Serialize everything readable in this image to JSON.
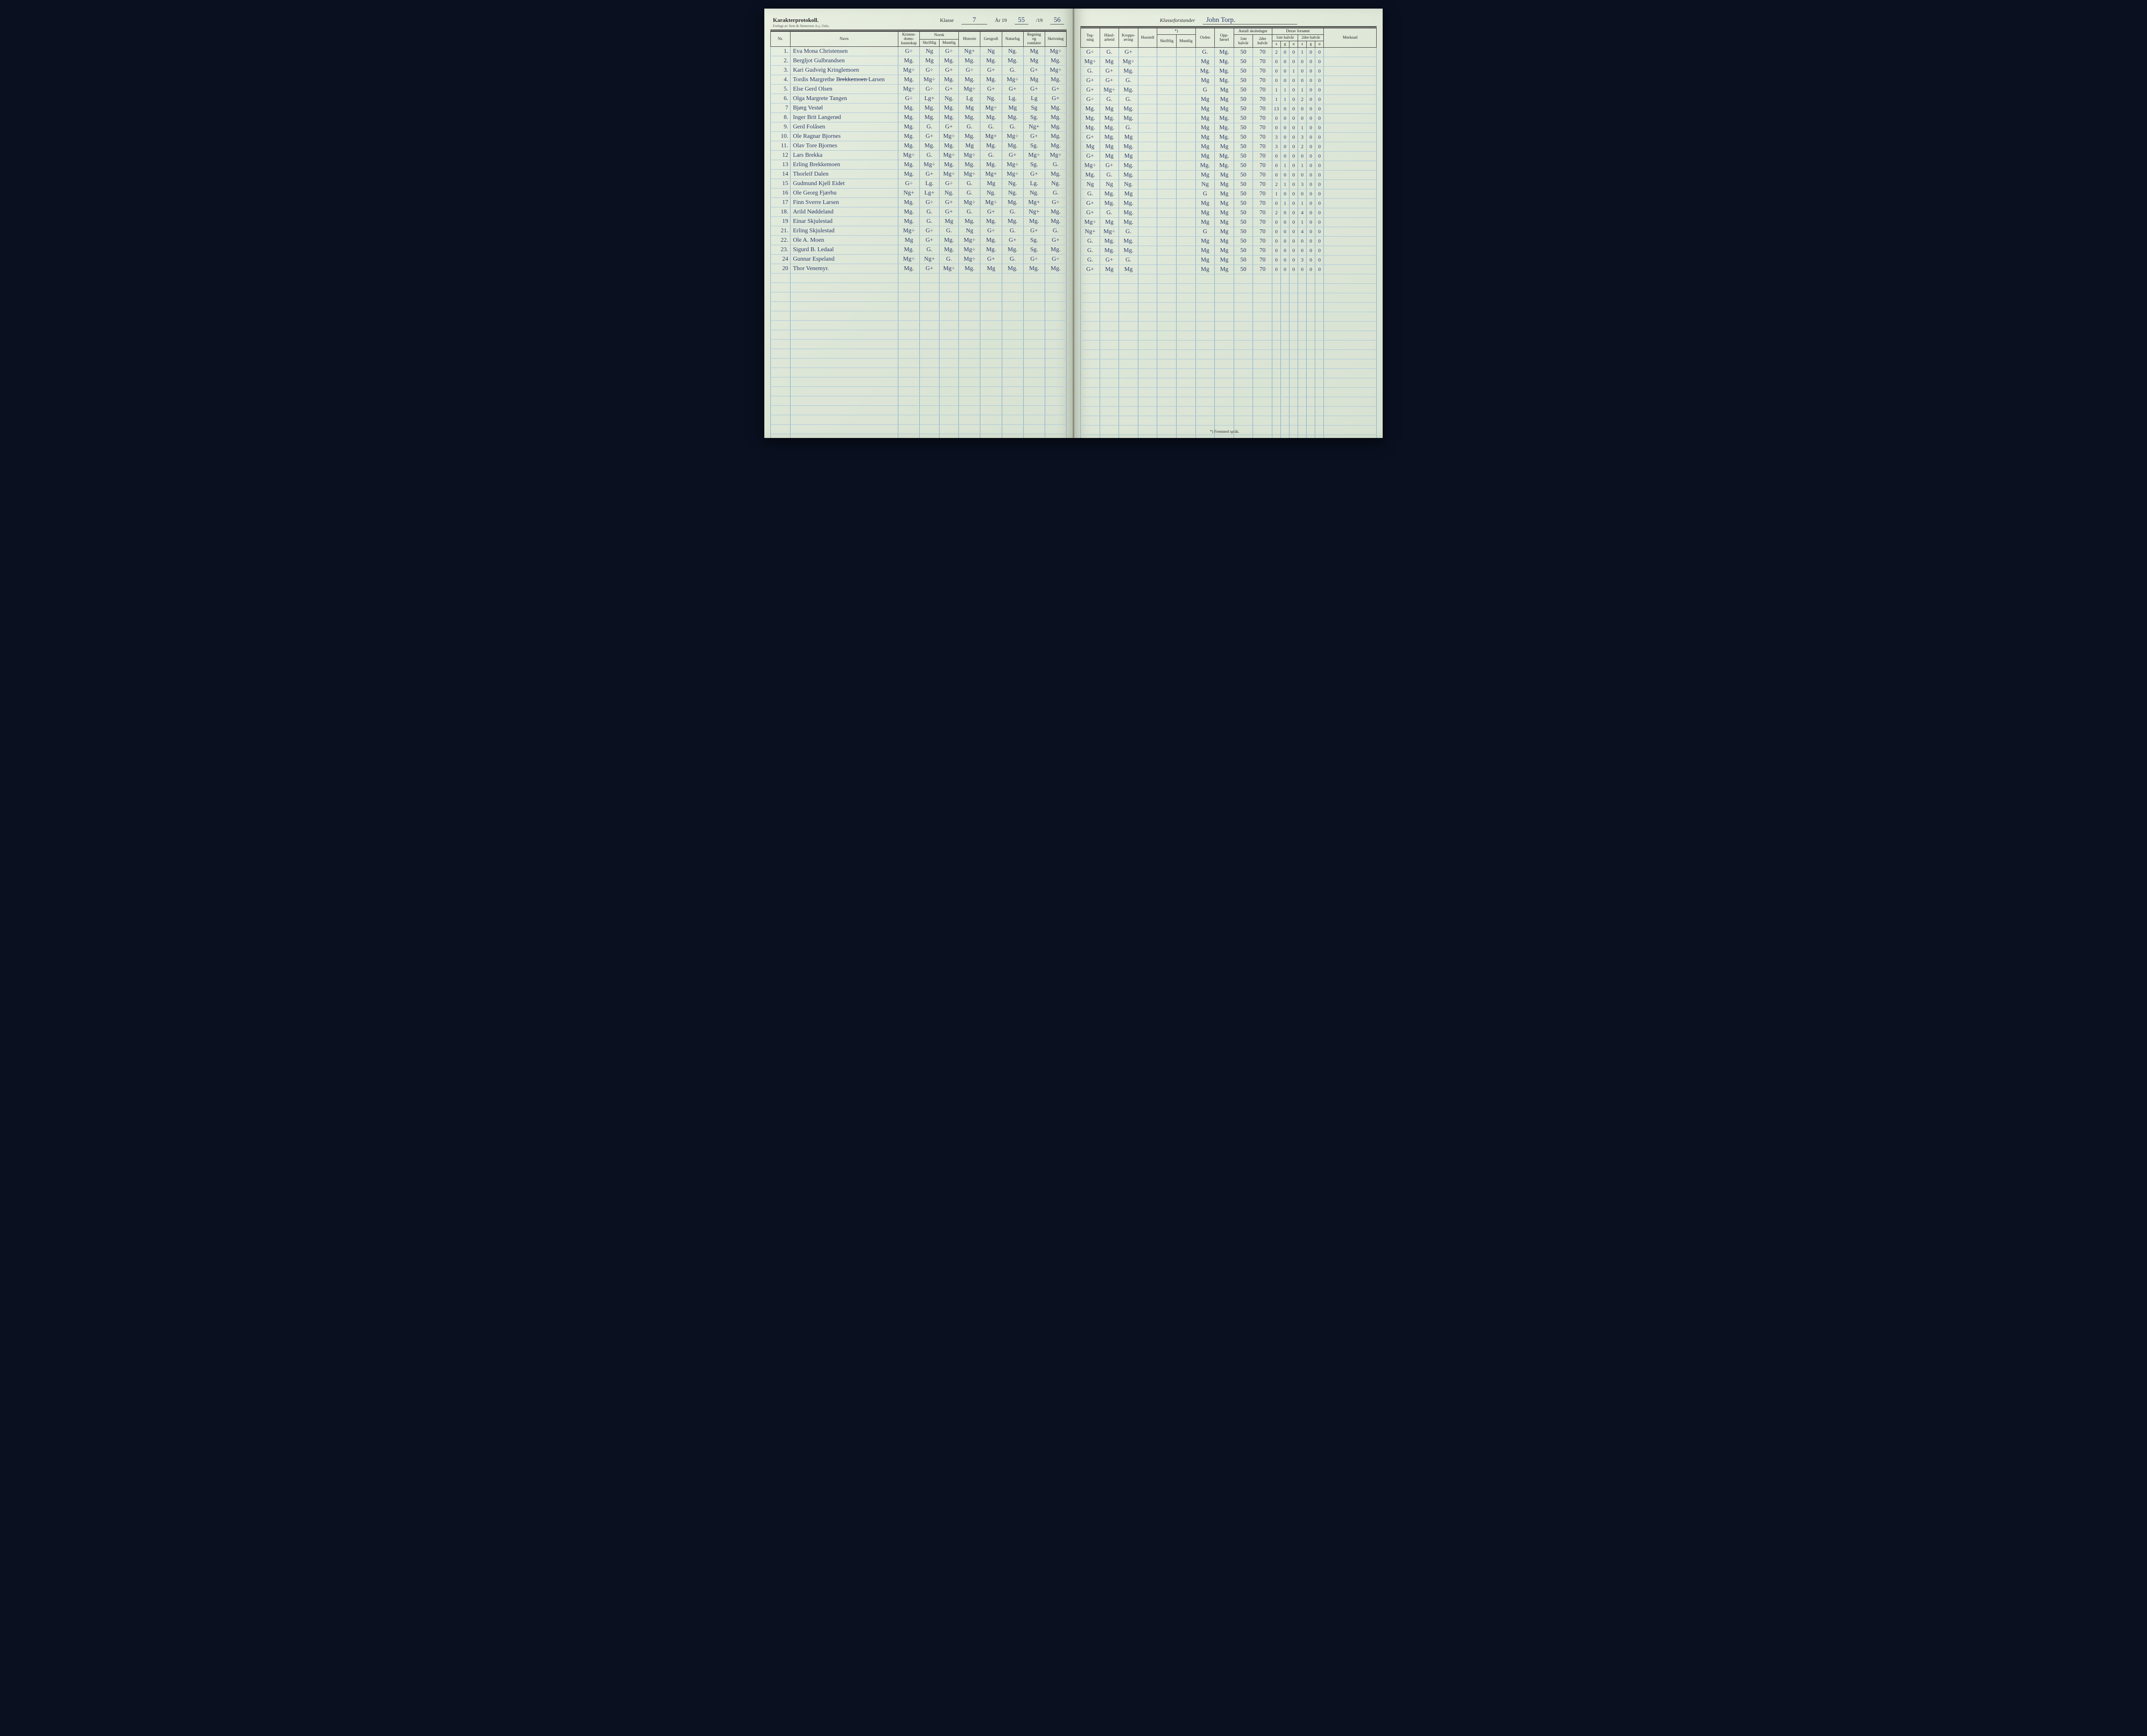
{
  "header_left": {
    "title": "Karakterprotokoll.",
    "publisher": "Forlagt av Sem & Stenersen A.s, Oslo.",
    "klasse_label": "Klasse",
    "klasse_value": "7",
    "year_label": "År 19",
    "year1": "55",
    "year_sep": "/19",
    "year2": "56"
  },
  "header_right": {
    "klasseforstander_label": "Klasseforstander",
    "klasseforstander_value": "John Torp."
  },
  "columns_left": {
    "nr": "Nr.",
    "navn": "Navn",
    "kristen": "Kristen-\ndoms-\nkunnskap",
    "norsk": "Norsk",
    "norsk_skriftlig": "Skriftlig",
    "norsk_muntlig": "Muntlig",
    "historie": "Historie",
    "geografi": "Geografi",
    "naturfag": "Naturfag",
    "regning": "Regning\nog\nromlære",
    "skrivning": "Skrivning"
  },
  "columns_right": {
    "tegning": "Teg-\nning",
    "handarbeid": "Hånd-\narbeid",
    "kroppsoving": "Kropps-\nøving",
    "husstell": "Husstell",
    "fremmed_note": "*)",
    "fremmed_skriftlig": "Skriftlig",
    "fremmed_muntlig": "Muntlig",
    "orden": "Orden",
    "oppforsel": "Opp-\nførsel",
    "antall_skoledager": "Antall skoledager",
    "halvaar1": "1ste\nhalvår",
    "halvaar2": "2dre\nhalvår",
    "derav_forsomt": "Derav forsømt",
    "forsomt_h1": "1ste halvår",
    "forsomt_h2": "2dre halvår",
    "sgu_s": "s",
    "sgu_g": "g",
    "sgu_u": "u",
    "merknad": "Merknad"
  },
  "footnote": "*) Fremmed språk.",
  "colors": {
    "paper": "#dde6d7",
    "ink_printed": "#2a2a2a",
    "ink_handwritten": "#2a3a6a",
    "rule_blue": "#7ba4c4",
    "rule_dark": "#333333",
    "book_edge": "#111825"
  },
  "typography": {
    "printed_font": "serif",
    "printed_size_pt": 10,
    "handwritten_font": "cursive",
    "handwritten_size_pt": 14
  },
  "students": [
    {
      "nr": "1.",
      "name": "Eva Mona Christensen",
      "kr": "G÷",
      "ns": "Ng",
      "nm": "G÷",
      "hi": "Ng+",
      "ge": "Ng",
      "na": "Ng.",
      "re": "Mg",
      "sk": "Mg÷",
      "te": "G÷",
      "ha": "G.",
      "kro": "G+",
      "or": "G.",
      "op": "Mg.",
      "d1": "50",
      "d2": "70",
      "f": [
        "2",
        "0",
        "0",
        "1",
        "0",
        "0"
      ]
    },
    {
      "nr": "2.",
      "name": "Bergljot Gulbrandsen",
      "kr": "Mg.",
      "ns": "Mg",
      "nm": "Mg.",
      "hi": "Mg.",
      "ge": "Mg.",
      "na": "Mg.",
      "re": "Mg",
      "sk": "Mg.",
      "te": "Mg÷",
      "ha": "Mg",
      "kro": "Mg÷",
      "or": "Mg",
      "op": "Mg.",
      "d1": "50",
      "d2": "70",
      "f": [
        "0",
        "0",
        "0",
        "0",
        "0",
        "0"
      ]
    },
    {
      "nr": "3.",
      "name": "Kari Gudveig Kringlemoen",
      "kr": "Mg÷",
      "ns": "G÷",
      "nm": "G+",
      "hi": "G÷",
      "ge": "G+",
      "na": "G.",
      "re": "G+",
      "sk": "Mg÷",
      "te": "G.",
      "ha": "G+",
      "kro": "Mg.",
      "or": "Mg.",
      "op": "Mg.",
      "d1": "50",
      "d2": "70",
      "f": [
        "0",
        "0",
        "1",
        "0",
        "0",
        "0"
      ]
    },
    {
      "nr": "4.",
      "name": "Tordis Margrethe B̶r̶e̶k̶k̶e̶m̶o̶e̶n̶ Larsen",
      "kr": "Mg.",
      "ns": "Mg÷",
      "nm": "Mg.",
      "hi": "Mg.",
      "ge": "Mg.",
      "na": "Mg÷",
      "re": "Mg",
      "sk": "Mg.",
      "te": "G+",
      "ha": "G+",
      "kro": "G.",
      "or": "Mg",
      "op": "Mg.",
      "d1": "50",
      "d2": "70",
      "f": [
        "0",
        "0",
        "0",
        "0",
        "0",
        "0"
      ]
    },
    {
      "nr": "5.",
      "name": "Else Gerd Olsen",
      "kr": "Mg÷",
      "ns": "G÷",
      "nm": "G+",
      "hi": "Mg÷",
      "ge": "G+",
      "na": "G+",
      "re": "G+",
      "sk": "G+",
      "te": "G+",
      "ha": "Mg÷",
      "kro": "Mg.",
      "or": "G",
      "op": "Mg",
      "d1": "50",
      "d2": "70",
      "f": [
        "1",
        "1",
        "0",
        "1",
        "0",
        "0"
      ]
    },
    {
      "nr": "6.",
      "name": "Olga Margrete Tangen",
      "kr": "G÷",
      "ns": "Lg+",
      "nm": "Ng.",
      "hi": "Lg",
      "ge": "Ng.",
      "na": "Lg.",
      "re": "Lg",
      "sk": "G+",
      "te": "G÷",
      "ha": "G.",
      "kro": "G.",
      "or": "Mg",
      "op": "Mg",
      "d1": "50",
      "d2": "70",
      "f": [
        "1",
        "1",
        "0",
        "2",
        "0",
        "0"
      ]
    },
    {
      "nr": "7",
      "name": "Bjørg Vestøl",
      "kr": "Mg.",
      "ns": "Mg.",
      "nm": "Mg.",
      "hi": "Mg",
      "ge": "Mg÷",
      "na": "Mg",
      "re": "Sg",
      "sk": "Mg.",
      "te": "Mg.",
      "ha": "Mg",
      "kro": "Mg.",
      "or": "Mg",
      "op": "Mg",
      "d1": "50",
      "d2": "70",
      "f": [
        "13",
        "0",
        "0",
        "0",
        "0",
        "0"
      ]
    },
    {
      "nr": "8.",
      "name": "Inger Brit Langerød",
      "kr": "Mg.",
      "ns": "Mg.",
      "nm": "Mg.",
      "hi": "Mg.",
      "ge": "Mg.",
      "na": "Mg.",
      "re": "Sg.",
      "sk": "Mg.",
      "te": "Mg.",
      "ha": "Mg.",
      "kro": "Mg.",
      "or": "Mg",
      "op": "Mg.",
      "d1": "50",
      "d2": "70",
      "f": [
        "0",
        "0",
        "0",
        "0",
        "0",
        "0"
      ]
    },
    {
      "nr": "9.",
      "name": "Gerd Folåsen",
      "kr": "Mg.",
      "ns": "G.",
      "nm": "G+",
      "hi": "G.",
      "ge": "G.",
      "na": "G.",
      "re": "Ng+",
      "sk": "Mg.",
      "te": "Mg.",
      "ha": "Mg.",
      "kro": "G.",
      "or": "Mg",
      "op": "Mg.",
      "d1": "50",
      "d2": "70",
      "f": [
        "0",
        "0",
        "0",
        "1",
        "0",
        "0"
      ]
    },
    {
      "nr": "10.",
      "name": "Ole Ragnar Bjornes",
      "kr": "Mg.",
      "ns": "G+",
      "nm": "Mg÷",
      "hi": "Mg.",
      "ge": "Mg+",
      "na": "Mg÷",
      "re": "G+",
      "sk": "Mg.",
      "te": "G+",
      "ha": "Mg.",
      "kro": "Mg",
      "or": "Mg",
      "op": "Mg.",
      "d1": "50",
      "d2": "70",
      "f": [
        "3",
        "0",
        "0",
        "3",
        "0",
        "0"
      ]
    },
    {
      "nr": "11.",
      "name": "Olav Tore Bjornes",
      "kr": "Mg.",
      "ns": "Mg.",
      "nm": "Mg.",
      "hi": "Mg",
      "ge": "Mg.",
      "na": "Mg.",
      "re": "Sg.",
      "sk": "Mg.",
      "te": "Mg",
      "ha": "Mg",
      "kro": "Mg.",
      "or": "Mg",
      "op": "Mg",
      "d1": "50",
      "d2": "70",
      "f": [
        "3",
        "0",
        "0",
        "2",
        "0",
        "0"
      ]
    },
    {
      "nr": "12",
      "name": "Lars Brekka",
      "kr": "Mg÷",
      "ns": "G.",
      "nm": "Mg÷",
      "hi": "Mg÷",
      "ge": "G.",
      "na": "G+",
      "re": "Mg÷",
      "sk": "Mg÷",
      "te": "G+",
      "ha": "Mg",
      "kro": "Mg",
      "or": "Mg",
      "op": "Mg.",
      "d1": "50",
      "d2": "70",
      "f": [
        "0",
        "0",
        "0",
        "0",
        "0",
        "0"
      ]
    },
    {
      "nr": "13",
      "name": "Erling Brekkemoen",
      "kr": "Mg.",
      "ns": "Mg÷",
      "nm": "Mg.",
      "hi": "Mg.",
      "ge": "Mg.",
      "na": "Mg÷",
      "re": "Sg.",
      "sk": "G.",
      "te": "Mg÷",
      "ha": "G+",
      "kro": "Mg.",
      "or": "Mg.",
      "op": "Mg.",
      "d1": "50",
      "d2": "70",
      "f": [
        "0",
        "1",
        "0",
        "1",
        "0",
        "0"
      ]
    },
    {
      "nr": "14",
      "name": "Thorleif Dalen",
      "kr": "Mg.",
      "ns": "G+",
      "nm": "Mg÷",
      "hi": "Mg÷",
      "ge": "Mg+",
      "na": "Mg÷",
      "re": "G+",
      "sk": "Mg.",
      "te": "Mg.",
      "ha": "G.",
      "kro": "Mg.",
      "or": "Mg",
      "op": "Mg",
      "d1": "50",
      "d2": "70",
      "f": [
        "0",
        "0",
        "0",
        "0",
        "0",
        "0"
      ]
    },
    {
      "nr": "15",
      "name": "Gudmund Kjell Eidet",
      "kr": "G÷",
      "ns": "Lg.",
      "nm": "G÷",
      "hi": "G.",
      "ge": "Mg",
      "na": "Ng.",
      "re": "Lg.",
      "sk": "Ng.",
      "te": "Ng",
      "ha": "Ng",
      "kro": "Ng.",
      "or": "Ng",
      "op": "Mg",
      "d1": "50",
      "d2": "70",
      "f": [
        "2",
        "1",
        "0",
        "3",
        "0",
        "0"
      ]
    },
    {
      "nr": "16",
      "name": "Ole Georg Fjærbu",
      "kr": "Ng+",
      "ns": "Lg+",
      "nm": "Ng.",
      "hi": "G.",
      "ge": "Ng.",
      "na": "Ng.",
      "re": "Ng.",
      "sk": "G.",
      "te": "G.",
      "ha": "Mg.",
      "kro": "Mg",
      "or": "G",
      "op": "Mg",
      "d1": "50",
      "d2": "70",
      "f": [
        "1",
        "0",
        "0",
        "0",
        "0",
        "0"
      ]
    },
    {
      "nr": "17",
      "name": "Finn Sverre Larsen",
      "kr": "Mg.",
      "ns": "G÷",
      "nm": "G+",
      "hi": "Mg÷",
      "ge": "Mg÷",
      "na": "Mg.",
      "re": "Mg+",
      "sk": "G÷",
      "te": "G+",
      "ha": "Mg.",
      "kro": "Mg.",
      "or": "Mg",
      "op": "Mg",
      "d1": "50",
      "d2": "70",
      "f": [
        "0",
        "1",
        "0",
        "1",
        "0",
        "0"
      ]
    },
    {
      "nr": "18.",
      "name": "Arild Nøddeland",
      "kr": "Mg.",
      "ns": "G.",
      "nm": "G+",
      "hi": "G.",
      "ge": "G+",
      "na": "G.",
      "re": "Ng+",
      "sk": "Mg.",
      "te": "G+",
      "ha": "G.",
      "kro": "Mg.",
      "or": "Mg",
      "op": "Mg",
      "d1": "50",
      "d2": "70",
      "f": [
        "2",
        "0",
        "0",
        "4",
        "0",
        "0"
      ]
    },
    {
      "nr": "19",
      "name": "Einar Skjulestad",
      "kr": "Mg.",
      "ns": "G.",
      "nm": "Mg",
      "hi": "Mg.",
      "ge": "Mg.",
      "na": "Mg.",
      "re": "Mg.",
      "sk": "Mg.",
      "te": "Mg÷",
      "ha": "Mg",
      "kro": "Mg.",
      "or": "Mg",
      "op": "Mg",
      "d1": "50",
      "d2": "70",
      "f": [
        "0",
        "0",
        "0",
        "1",
        "0",
        "0"
      ]
    },
    {
      "nr": "21.",
      "name": "Erling Skjulestad",
      "kr": "Mg÷",
      "ns": "G÷",
      "nm": "G.",
      "hi": "Ng",
      "ge": "G÷",
      "na": "G.",
      "re": "G+",
      "sk": "G.",
      "te": "Ng+",
      "ha": "Mg÷",
      "kro": "G.",
      "or": "G",
      "op": "Mg",
      "d1": "50",
      "d2": "70",
      "f": [
        "0",
        "0",
        "0",
        "4",
        "0",
        "0"
      ]
    },
    {
      "nr": "22.",
      "name": "Ole A. Moen",
      "kr": "Mg",
      "ns": "G+",
      "nm": "Mg.",
      "hi": "Mg÷",
      "ge": "Mg.",
      "na": "G+",
      "re": "Sg.",
      "sk": "G+",
      "te": "G.",
      "ha": "Mg.",
      "kro": "Mg.",
      "or": "Mg",
      "op": "Mg",
      "d1": "50",
      "d2": "70",
      "f": [
        "0",
        "0",
        "0",
        "0",
        "0",
        "0"
      ]
    },
    {
      "nr": "23.",
      "name": "Sigurd B. Ledaal",
      "kr": "Mg.",
      "ns": "G.",
      "nm": "Mg.",
      "hi": "Mg÷",
      "ge": "Mg.",
      "na": "Mg.",
      "re": "Sg.",
      "sk": "Mg.",
      "te": "G.",
      "ha": "Mg.",
      "kro": "Mg.",
      "or": "Mg",
      "op": "Mg",
      "d1": "50",
      "d2": "70",
      "f": [
        "0",
        "0",
        "0",
        "0",
        "0",
        "0"
      ]
    },
    {
      "nr": "24",
      "name": "Gunnar Espeland",
      "kr": "Mg÷",
      "ns": "Ng+",
      "nm": "G.",
      "hi": "Mg÷",
      "ge": "G+",
      "na": "G.",
      "re": "G÷",
      "sk": "G÷",
      "te": "G.",
      "ha": "G+",
      "kro": "G.",
      "or": "Mg",
      "op": "Mg",
      "d1": "50",
      "d2": "70",
      "f": [
        "0",
        "0",
        "0",
        "3",
        "0",
        "0"
      ]
    },
    {
      "nr": "20",
      "name": "Thor Venemyr.",
      "kr": "Mg.",
      "ns": "G+",
      "nm": "Mg÷",
      "hi": "Mg.",
      "ge": "Mg",
      "na": "Mg.",
      "re": "Mg.",
      "sk": "Mg.",
      "te": "G+",
      "ha": "Mg",
      "kro": "Mg",
      "or": "Mg",
      "op": "Mg",
      "d1": "50",
      "d2": "70",
      "f": [
        "0",
        "0",
        "0",
        "0",
        "0",
        "0"
      ]
    }
  ],
  "empty_rows": 18
}
